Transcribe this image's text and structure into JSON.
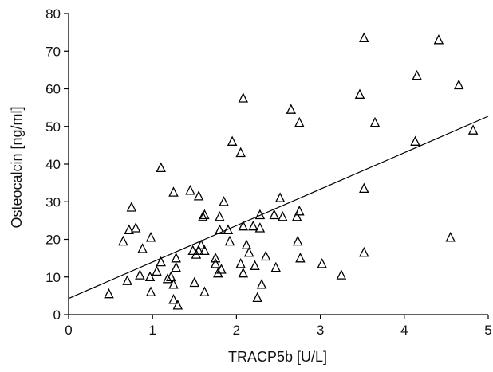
{
  "chart_data": {
    "type": "scatter",
    "xlabel": "TRACP5b [U/L]",
    "ylabel": "Osteocalcin [ng/ml]",
    "xlim": [
      0,
      5
    ],
    "ylim": [
      0,
      80
    ],
    "x_ticks": [
      0,
      1,
      2,
      3,
      4,
      5
    ],
    "y_ticks": [
      0,
      10,
      20,
      30,
      40,
      50,
      60,
      70,
      80
    ],
    "grid": false,
    "marker": "open-triangle",
    "marker_color": "#000000",
    "series": [
      {
        "points": [
          [
            0.48,
            5.5
          ],
          [
            0.65,
            19.5
          ],
          [
            0.7,
            9.0
          ],
          [
            0.72,
            22.5
          ],
          [
            0.75,
            28.5
          ],
          [
            0.8,
            23.0
          ],
          [
            0.85,
            10.5
          ],
          [
            0.88,
            17.5
          ],
          [
            0.97,
            10.0
          ],
          [
            0.98,
            20.5
          ],
          [
            0.98,
            6.0
          ],
          [
            1.05,
            11.5
          ],
          [
            1.1,
            39.0
          ],
          [
            1.1,
            14.0
          ],
          [
            1.18,
            9.5
          ],
          [
            1.22,
            10.0
          ],
          [
            1.25,
            32.5
          ],
          [
            1.25,
            8.0
          ],
          [
            1.25,
            4.0
          ],
          [
            1.28,
            15.0
          ],
          [
            1.28,
            12.5
          ],
          [
            1.3,
            2.5
          ],
          [
            1.45,
            33.0
          ],
          [
            1.48,
            17.0
          ],
          [
            1.5,
            8.5
          ],
          [
            1.52,
            16.0
          ],
          [
            1.55,
            31.5
          ],
          [
            1.55,
            17.0
          ],
          [
            1.58,
            18.5
          ],
          [
            1.6,
            26.0
          ],
          [
            1.62,
            26.5
          ],
          [
            1.62,
            17.0
          ],
          [
            1.62,
            6.0
          ],
          [
            1.75,
            13.5
          ],
          [
            1.75,
            15.0
          ],
          [
            1.78,
            11.0
          ],
          [
            1.8,
            26.0
          ],
          [
            1.8,
            22.5
          ],
          [
            1.82,
            12.0
          ],
          [
            1.85,
            30.0
          ],
          [
            1.9,
            22.5
          ],
          [
            1.92,
            19.5
          ],
          [
            1.95,
            46.0
          ],
          [
            2.05,
            43.0
          ],
          [
            2.05,
            13.5
          ],
          [
            2.08,
            57.5
          ],
          [
            2.08,
            11.0
          ],
          [
            2.08,
            23.5
          ],
          [
            2.12,
            18.5
          ],
          [
            2.15,
            16.5
          ],
          [
            2.2,
            23.5
          ],
          [
            2.22,
            13.0
          ],
          [
            2.25,
            4.5
          ],
          [
            2.28,
            26.5
          ],
          [
            2.28,
            23.0
          ],
          [
            2.3,
            8.0
          ],
          [
            2.35,
            15.5
          ],
          [
            2.45,
            26.5
          ],
          [
            2.47,
            12.5
          ],
          [
            2.52,
            31.0
          ],
          [
            2.55,
            26.0
          ],
          [
            2.65,
            54.5
          ],
          [
            2.72,
            26.0
          ],
          [
            2.73,
            19.5
          ],
          [
            2.75,
            51.0
          ],
          [
            2.75,
            27.5
          ],
          [
            2.76,
            15.0
          ],
          [
            3.02,
            13.5
          ],
          [
            3.25,
            10.5
          ],
          [
            3.47,
            58.5
          ],
          [
            3.52,
            73.5
          ],
          [
            3.52,
            33.5
          ],
          [
            3.52,
            16.5
          ],
          [
            3.65,
            51.0
          ],
          [
            4.13,
            46.0
          ],
          [
            4.15,
            63.5
          ],
          [
            4.41,
            73.0
          ],
          [
            4.55,
            20.5
          ],
          [
            4.65,
            61.0
          ],
          [
            4.82,
            49.0
          ]
        ]
      }
    ],
    "trendline": {
      "type": "linear",
      "x": [
        0,
        5
      ],
      "y": [
        4.3,
        52.7
      ]
    }
  }
}
